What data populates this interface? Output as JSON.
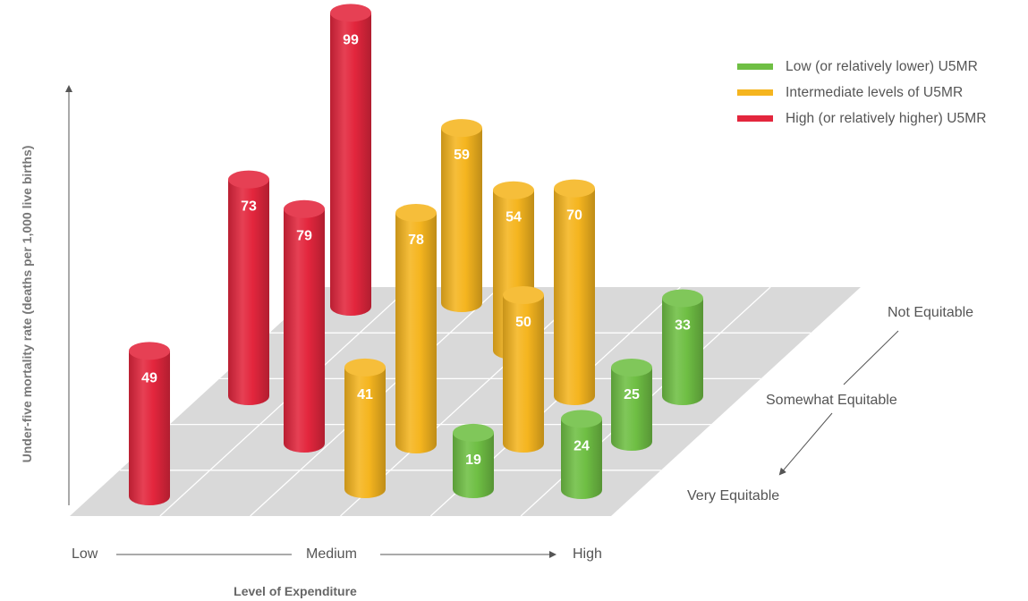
{
  "chart_data": {
    "type": "bar",
    "ylabel": "Under-five mortality rate (deaths per 1,000 live births)",
    "xlabel": "Level of Expenditure",
    "x_categories": [
      "Low",
      "Medium",
      "High"
    ],
    "z_categories": [
      "Very Equitable",
      "Somewhat Equitable",
      "Not Equitable"
    ],
    "legend": [
      {
        "name": "Low (or relatively lower) U5MR",
        "color": "#6fbf44"
      },
      {
        "name": "Intermediate levels of U5MR",
        "color": "#f5b51f"
      },
      {
        "name": "High (or relatively higher) U5MR",
        "color": "#e3263d"
      }
    ],
    "bars": [
      {
        "value": 99,
        "group": "High (or relatively higher) U5MR"
      },
      {
        "value": 73,
        "group": "High (or relatively higher) U5MR"
      },
      {
        "value": 59,
        "group": "Intermediate levels of U5MR"
      },
      {
        "value": 79,
        "group": "High (or relatively higher) U5MR"
      },
      {
        "value": 78,
        "group": "Intermediate levels of U5MR"
      },
      {
        "value": 70,
        "group": "Intermediate levels of U5MR"
      },
      {
        "value": 54,
        "group": "Intermediate levels of U5MR"
      },
      {
        "value": 33,
        "group": "Low (or relatively lower) U5MR"
      },
      {
        "value": 50,
        "group": "Intermediate levels of U5MR"
      },
      {
        "value": 41,
        "group": "Intermediate levels of U5MR"
      },
      {
        "value": 25,
        "group": "Low (or relatively lower) U5MR"
      },
      {
        "value": 49,
        "group": "High (or relatively higher) U5MR"
      },
      {
        "value": 24,
        "group": "Low (or relatively lower) U5MR"
      },
      {
        "value": 19,
        "group": "Low (or relatively lower) U5MR"
      }
    ]
  }
}
